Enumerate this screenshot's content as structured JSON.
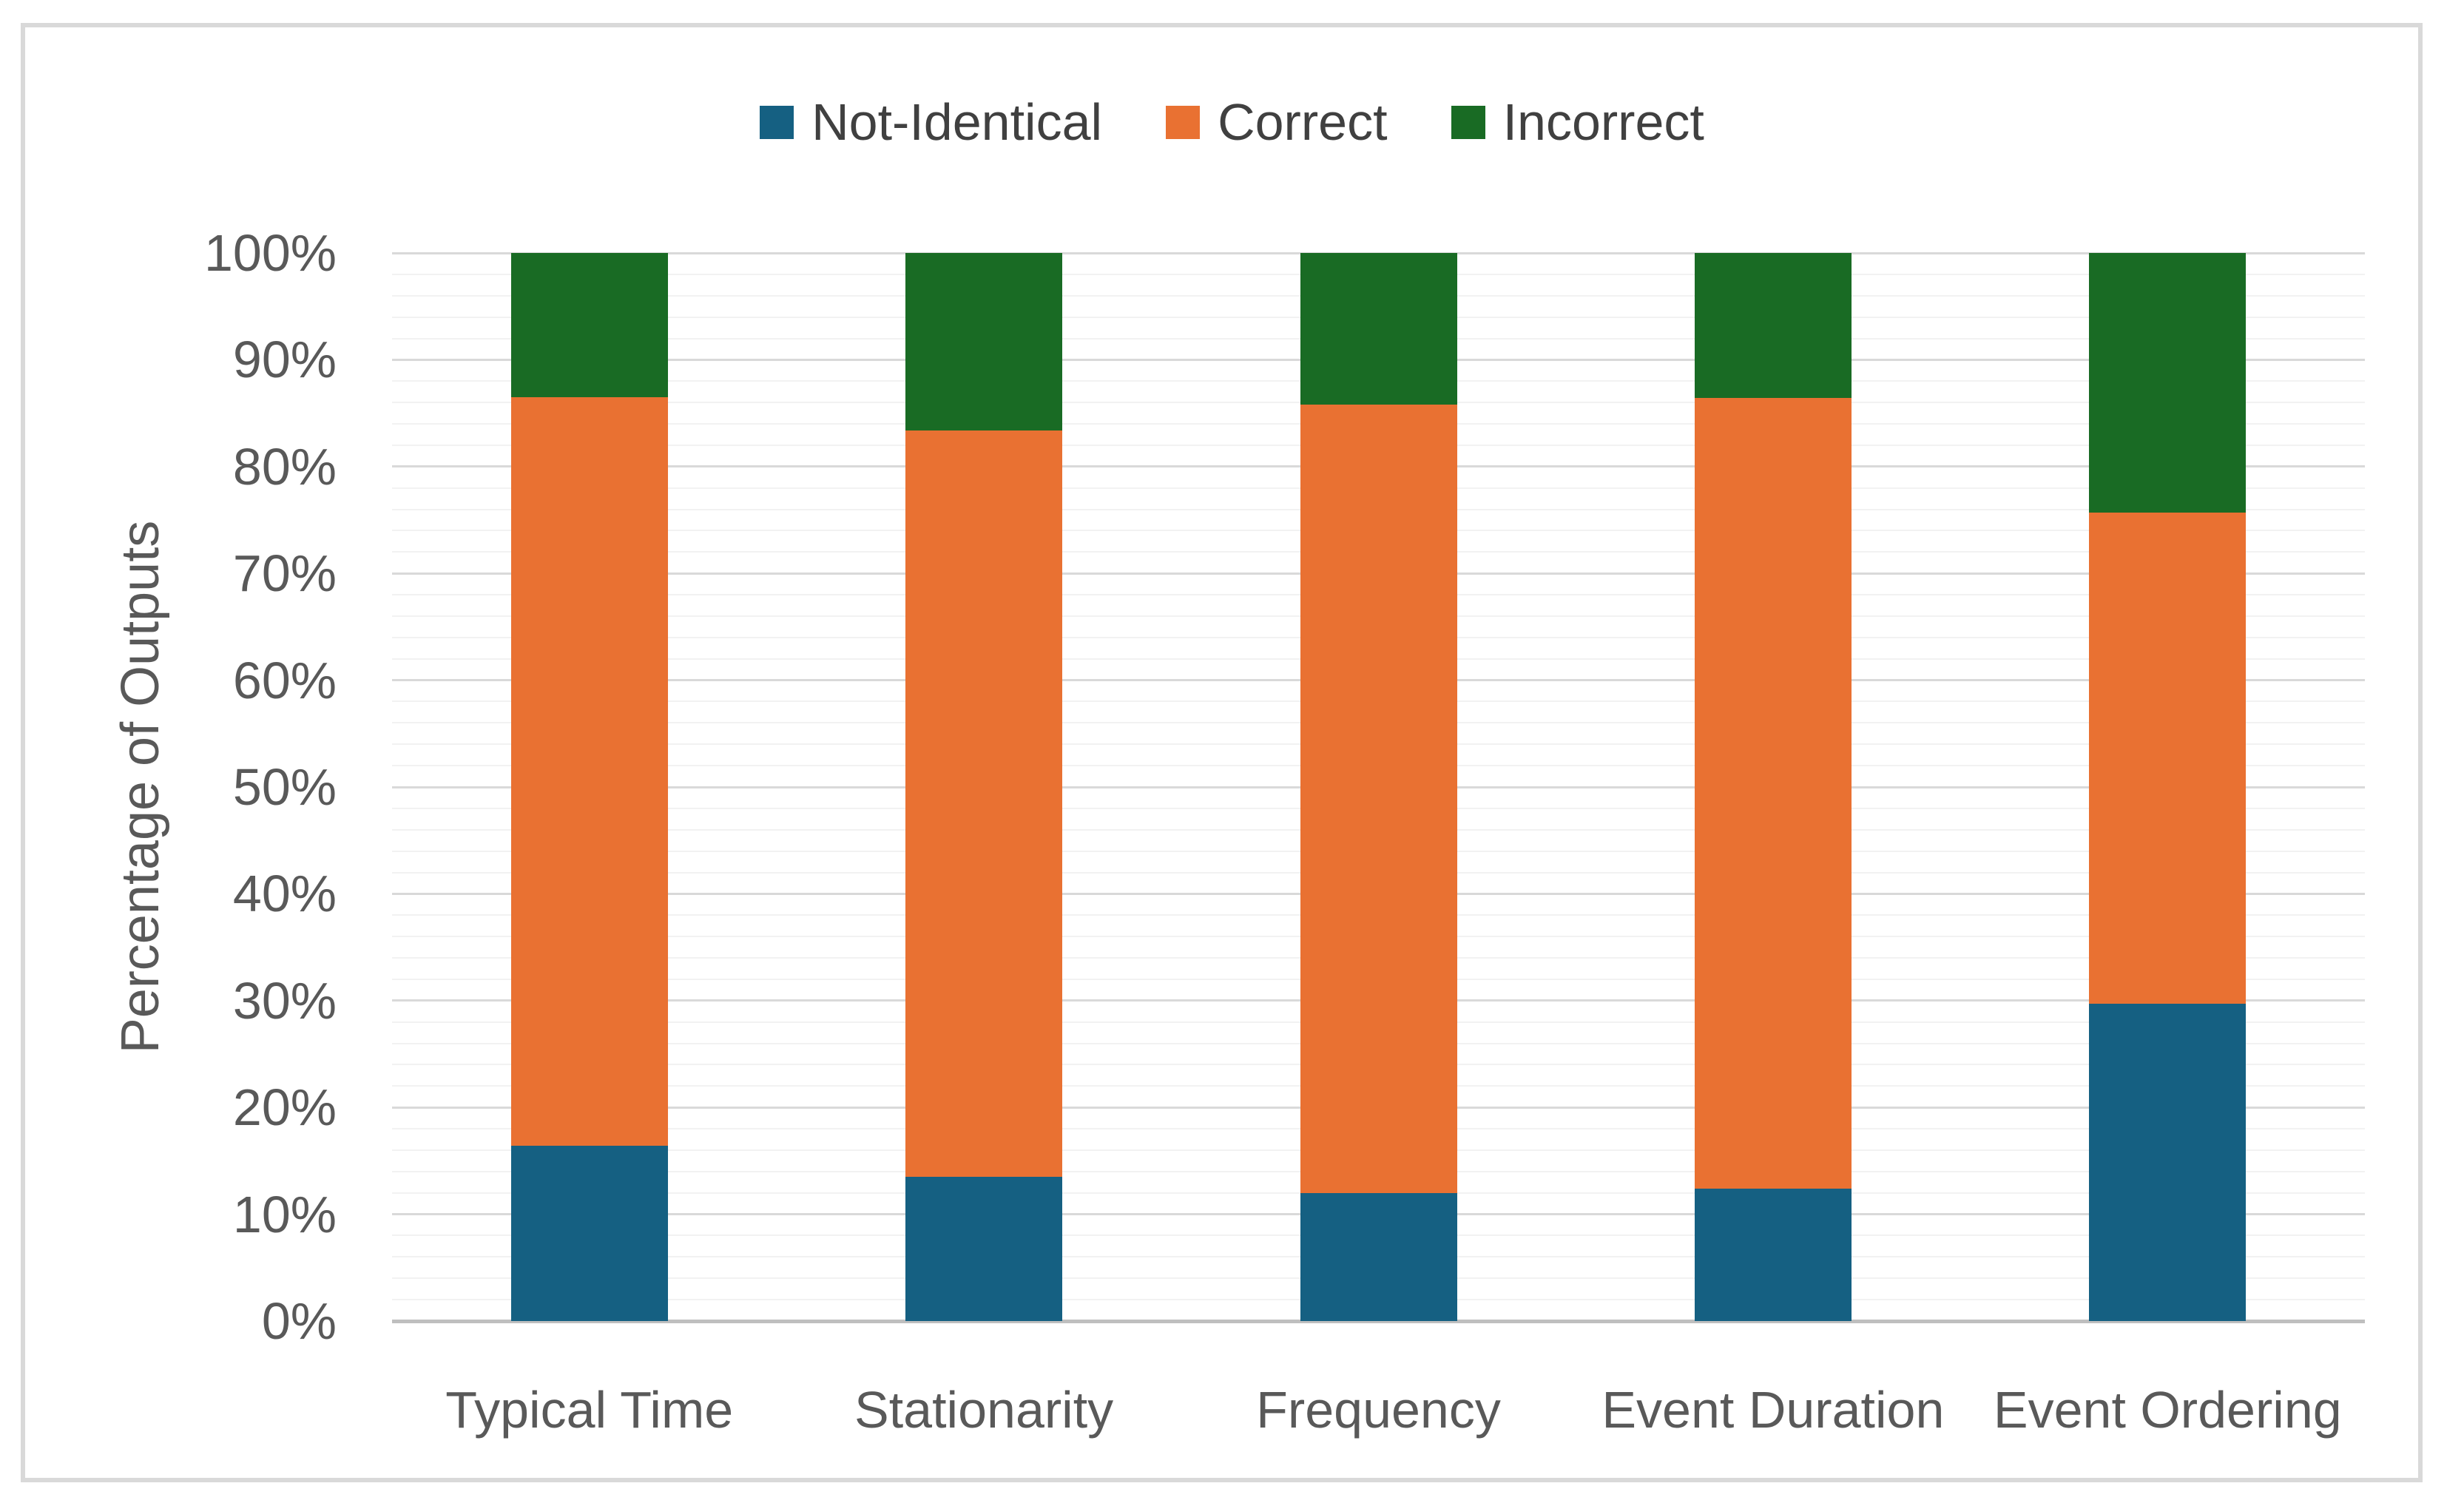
{
  "chart_data": {
    "type": "bar",
    "stacked": true,
    "orientation": "vertical",
    "categories": [
      "Typical Time",
      "Stationarity",
      "Frequency",
      "Event Duration",
      "Event Ordering"
    ],
    "series": [
      {
        "name": "Not-Identical",
        "color": "#156082",
        "values": [
          16.4,
          13.5,
          12.0,
          12.4,
          29.7
        ]
      },
      {
        "name": "Correct",
        "color": "#E97132",
        "values": [
          70.1,
          69.9,
          73.8,
          74.0,
          46.0
        ]
      },
      {
        "name": "Incorrect",
        "color": "#196B24",
        "values": [
          13.5,
          16.6,
          14.2,
          13.6,
          24.3
        ]
      }
    ],
    "title": "",
    "xlabel": "",
    "ylabel": "Percentage of Outputs",
    "ylim": [
      0,
      100
    ],
    "y_tick_labels": [
      "0%",
      "10%",
      "20%",
      "30%",
      "40%",
      "50%",
      "60%",
      "70%",
      "80%",
      "90%",
      "100%"
    ],
    "y_major_step": 10,
    "y_minor_step": 2,
    "grid": "horizontal major+minor on",
    "legend_position": "top-center"
  },
  "legend": {
    "items": [
      {
        "label": "Not-Identical",
        "swatch": "blue-square"
      },
      {
        "label": "Correct",
        "swatch": "orange-square"
      },
      {
        "label": "Incorrect",
        "swatch": "green-square"
      }
    ]
  },
  "colors": {
    "not_identical": "#156082",
    "correct": "#E97132",
    "incorrect": "#196B24",
    "axis_text": "#595959",
    "legend_text": "#404040",
    "gridline_major": "#D9D9D9",
    "gridline_minor": "#F2F2F2",
    "axis_line": "#BFBFBF",
    "frame_border": "#D9D9D9",
    "background": "#FFFFFF"
  }
}
